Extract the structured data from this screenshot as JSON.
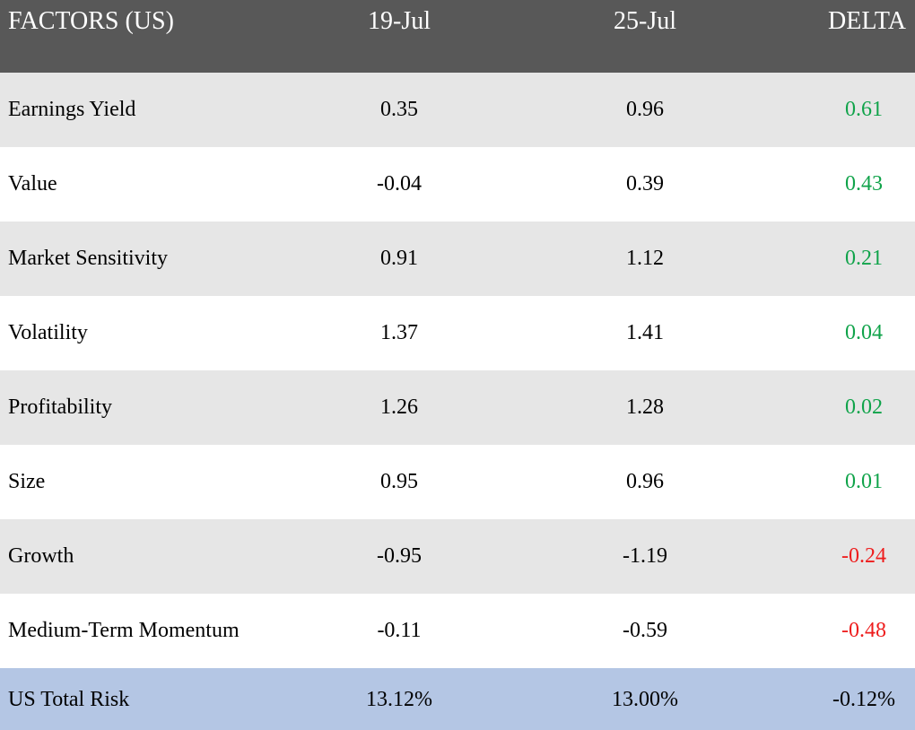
{
  "chart_data": {
    "type": "table",
    "columns": [
      "FACTORS (US)",
      "19-Jul",
      "25-Jul",
      "DELTA"
    ],
    "rows": [
      {
        "factor": "Earnings Yield",
        "jul19": "0.35",
        "jul25": "0.96",
        "delta": "0.61",
        "delta_sign": "positive"
      },
      {
        "factor": "Value",
        "jul19": "-0.04",
        "jul25": "0.39",
        "delta": "0.43",
        "delta_sign": "positive"
      },
      {
        "factor": "Market Sensitivity",
        "jul19": "0.91",
        "jul25": "1.12",
        "delta": "0.21",
        "delta_sign": "positive"
      },
      {
        "factor": "Volatility",
        "jul19": "1.37",
        "jul25": "1.41",
        "delta": "0.04",
        "delta_sign": "positive"
      },
      {
        "factor": "Profitability",
        "jul19": "1.26",
        "jul25": "1.28",
        "delta": "0.02",
        "delta_sign": "positive"
      },
      {
        "factor": "Size",
        "jul19": "0.95",
        "jul25": "0.96",
        "delta": "0.01",
        "delta_sign": "positive"
      },
      {
        "factor": "Growth",
        "jul19": "-0.95",
        "jul25": "-1.19",
        "delta": "-0.24",
        "delta_sign": "negative"
      },
      {
        "factor": "Medium-Term Momentum",
        "jul19": "-0.11",
        "jul25": "-0.59",
        "delta": "-0.48",
        "delta_sign": "negative"
      }
    ],
    "total": {
      "factor": "US Total Risk",
      "jul19": "13.12%",
      "jul25": "13.00%",
      "delta": "-0.12%"
    }
  },
  "colors": {
    "header_bg": "#585858",
    "header_text": "#ffffff",
    "row_shaded": "#e6e6e6",
    "row_plain": "#ffffff",
    "total_bg": "#b4c6e4",
    "positive_delta": "#10a34a",
    "negative_delta": "#ee1c1c"
  }
}
